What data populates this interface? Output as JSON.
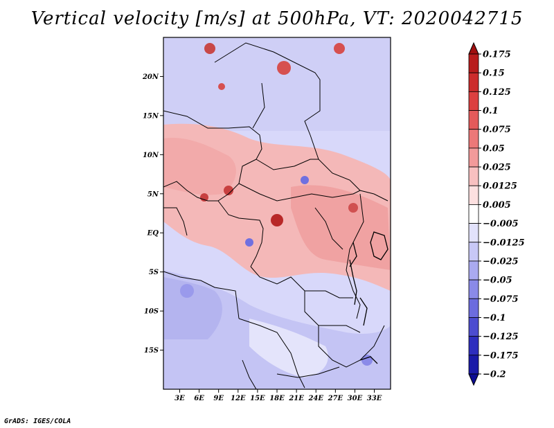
{
  "title": "Vertical velocity [m/s] at 500hPa, VT: 2020042715",
  "credit": "GrADS: IGES/COLA",
  "map": {
    "lat_labels": [
      "20N",
      "15N",
      "10N",
      "5N",
      "EQ",
      "5S",
      "10S",
      "15S"
    ],
    "lon_labels": [
      "3E",
      "6E",
      "9E",
      "12E",
      "15E",
      "18E",
      "21E",
      "24E",
      "27E",
      "30E",
      "33E"
    ],
    "lon_range": [
      0.5,
      35.5
    ],
    "lat_range": [
      -20,
      25
    ]
  },
  "colorbar": {
    "labels": [
      "0.175",
      "0.15",
      "0.125",
      "0.1",
      "0.075",
      "0.05",
      "0.025",
      "0.0125",
      "0.005",
      "−0.005",
      "−0.0125",
      "−0.025",
      "−0.05",
      "−0.075",
      "−0.1",
      "−0.125",
      "−0.175",
      "−0.2"
    ],
    "colors": [
      "#a01010",
      "#b81c1c",
      "#cc2c2c",
      "#dc4040",
      "#e45a5a",
      "#ec7878",
      "#f29a9a",
      "#f8c0c0",
      "#fde0e0",
      "#ffffff",
      "#e2e2fb",
      "#c8c8f6",
      "#aaaaf0",
      "#8a8ae8",
      "#6c6cde",
      "#4c4cd0",
      "#2e2ebe",
      "#1a1aa8",
      "#0c0c94"
    ]
  }
}
